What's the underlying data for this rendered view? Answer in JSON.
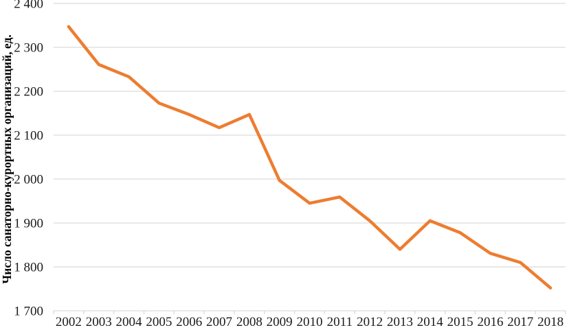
{
  "chart_data": {
    "type": "line",
    "title": "",
    "xlabel": "",
    "ylabel": "Число санаторно-курортных организаций, ед.",
    "x": [
      2002,
      2003,
      2004,
      2005,
      2006,
      2007,
      2008,
      2009,
      2010,
      2011,
      2012,
      2013,
      2014,
      2015,
      2016,
      2017,
      2018
    ],
    "x_tick_labels": [
      "2002",
      "2003",
      "2004",
      "2005",
      "2006",
      "2007",
      "2008",
      "2009",
      "2010",
      "2011",
      "2012",
      "2013",
      "2014",
      "2015",
      "2016",
      "2017",
      "2018"
    ],
    "series": [
      {
        "name": "Число санаторно-курортных организаций, ед.",
        "values": [
          2347,
          2261,
          2233,
          2173,
          2147,
          2117,
          2147,
          1997,
          1945,
          1959,
          1905,
          1840,
          1905,
          1878,
          1831,
          1810,
          1752
        ],
        "color": "#ED7D31",
        "stroke_width": 4.5
      }
    ],
    "ylim": [
      1700,
      2400
    ],
    "ytick_step": 100,
    "y_tick_labels": [
      "1 700",
      "1 800",
      "1 900",
      "2 000",
      "2 100",
      "2 200",
      "2 300",
      "2 400"
    ],
    "grid": "horizontal",
    "gridline_color": "#D9D9D9",
    "tick_color": "#D9D9D9",
    "text_color": "#1a1a1a",
    "background": "#FFFFFF",
    "legend_position": "none",
    "markers": "none"
  }
}
